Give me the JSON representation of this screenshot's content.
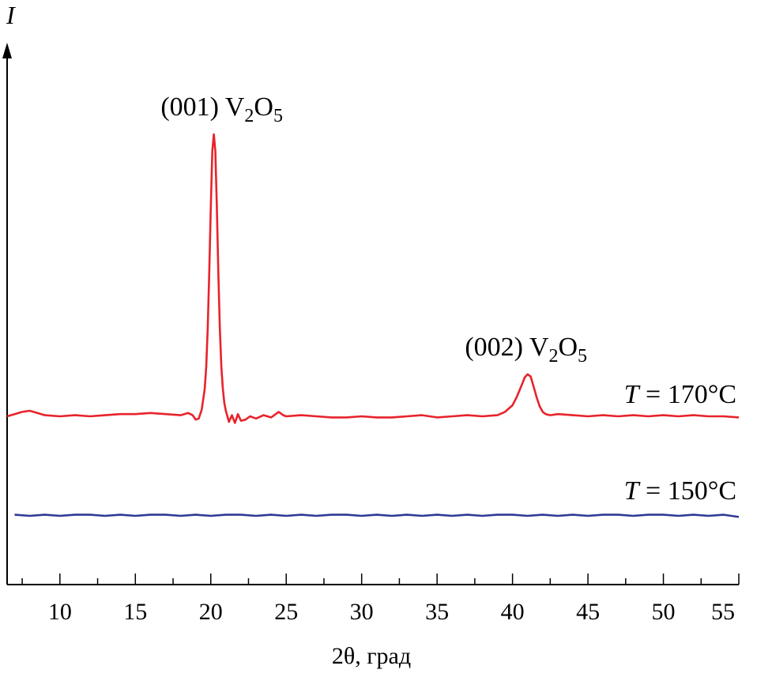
{
  "chart_data": {
    "type": "line",
    "xlabel": "2θ, град",
    "ylabel": "I",
    "xlim": [
      6.5,
      55
    ],
    "x_ticks": [
      10,
      15,
      20,
      25,
      30,
      35,
      40,
      45,
      50,
      55
    ],
    "x_minor_step": 2.5,
    "grid": false,
    "series": [
      {
        "label": {
          "prefix": "T",
          "text": " = 170°C"
        },
        "color": "#e8232b",
        "x": [
          6.5,
          7.0,
          7.5,
          8.0,
          8.5,
          9.0,
          10.0,
          11.0,
          12.0,
          13.0,
          14.0,
          15.0,
          16.0,
          17.0,
          18.0,
          18.5,
          18.8,
          19.0,
          19.2,
          19.4,
          19.6,
          19.7,
          19.8,
          19.9,
          20.0,
          20.1,
          20.2,
          20.3,
          20.4,
          20.5,
          20.6,
          20.7,
          20.8,
          20.9,
          21.0,
          21.1,
          21.2,
          21.4,
          21.6,
          21.8,
          22.0,
          22.3,
          22.6,
          23.0,
          23.5,
          24.0,
          24.5,
          24.8,
          25.0,
          26.0,
          27.0,
          28.0,
          29.0,
          30.0,
          31.0,
          32.0,
          33.0,
          34.0,
          35.0,
          36.0,
          37.0,
          38.0,
          39.0,
          39.5,
          40.0,
          40.3,
          40.6,
          40.8,
          41.0,
          41.2,
          41.4,
          41.6,
          41.8,
          42.0,
          42.2,
          42.5,
          43.0,
          44.0,
          45.0,
          46.0,
          47.0,
          48.0,
          49.0,
          50.0,
          51.0,
          52.0,
          53.0,
          54.0,
          55.0
        ],
        "y": [
          0,
          0.2,
          0.4,
          0.5,
          0.3,
          0.1,
          0.0,
          0.1,
          0.0,
          0.1,
          0.2,
          0.2,
          0.3,
          0.2,
          0.1,
          0.3,
          0.1,
          -0.3,
          -0.2,
          0.6,
          2.5,
          4.5,
          8.0,
          13.0,
          19.0,
          24.0,
          25.5,
          24.0,
          19.0,
          13.0,
          8.0,
          4.5,
          2.5,
          1.2,
          0.5,
          0.0,
          -0.5,
          0.1,
          -0.6,
          0.2,
          -0.4,
          -0.3,
          0.0,
          -0.2,
          0.1,
          -0.1,
          0.4,
          0.1,
          0.0,
          0.1,
          0.0,
          -0.1,
          -0.1,
          0.0,
          -0.1,
          -0.1,
          0.0,
          0.1,
          -0.1,
          0.0,
          0.1,
          0.0,
          0.1,
          0.4,
          1.0,
          1.8,
          2.8,
          3.5,
          3.8,
          3.6,
          2.7,
          1.7,
          0.9,
          0.4,
          0.2,
          0.1,
          0.2,
          0.1,
          0.0,
          0.1,
          0.0,
          0.1,
          0.0,
          0.1,
          0.0,
          0.1,
          0.0,
          0.0,
          -0.1
        ]
      },
      {
        "label": {
          "prefix": "T",
          "text": " = 150°C"
        },
        "color": "#2e3a94",
        "x": [
          7,
          8,
          9,
          10,
          11,
          12,
          13,
          14,
          15,
          16,
          17,
          18,
          19,
          20,
          21,
          22,
          23,
          24,
          25,
          26,
          27,
          28,
          29,
          30,
          31,
          32,
          33,
          34,
          35,
          36,
          37,
          38,
          39,
          40,
          41,
          42,
          43,
          44,
          45,
          46,
          47,
          48,
          49,
          50,
          51,
          52,
          53,
          54,
          55
        ],
        "y": [
          -8.9,
          -9.0,
          -8.9,
          -9.0,
          -8.9,
          -8.9,
          -9.0,
          -8.9,
          -9.0,
          -8.9,
          -8.9,
          -9.0,
          -8.9,
          -9.0,
          -8.9,
          -8.9,
          -9.0,
          -8.9,
          -9.0,
          -8.9,
          -9.0,
          -8.9,
          -8.9,
          -9.0,
          -8.9,
          -9.0,
          -8.9,
          -9.0,
          -8.9,
          -9.0,
          -8.9,
          -9.0,
          -8.9,
          -8.9,
          -9.0,
          -8.9,
          -9.0,
          -8.9,
          -9.0,
          -8.9,
          -8.9,
          -9.0,
          -8.9,
          -8.9,
          -9.0,
          -8.9,
          -9.0,
          -8.9,
          -9.1
        ]
      }
    ],
    "annotations": [
      {
        "text": "(001) V",
        "sub1": "2",
        "mid": "O",
        "sub2": "5",
        "x": 20.1,
        "y": 25.5
      },
      {
        "text": "(002) V",
        "sub1": "2",
        "mid": "O",
        "sub2": "5",
        "x": 41.0,
        "y": 3.8
      }
    ]
  }
}
